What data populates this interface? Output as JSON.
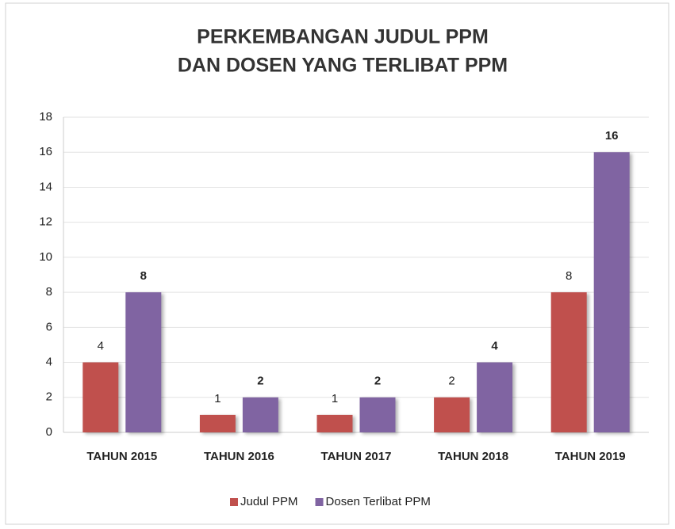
{
  "chart_data": {
    "type": "bar",
    "title": [
      "PERKEMBANGAN JUDUL PPM",
      "DAN DOSEN YANG TERLIBAT PPM"
    ],
    "categories": [
      "TAHUN 2015",
      "TAHUN 2016",
      "TAHUN 2017",
      "TAHUN 2018",
      "TAHUN 2019"
    ],
    "series": [
      {
        "name": "Judul PPM",
        "color": "#c0504d",
        "values": [
          4,
          1,
          1,
          2,
          8
        ]
      },
      {
        "name": "Dosen Terlibat PPM",
        "color": "#8064a2",
        "values": [
          8,
          2,
          2,
          4,
          16
        ]
      }
    ],
    "ylim": [
      0,
      18
    ],
    "yticks": [
      0,
      2,
      4,
      6,
      8,
      10,
      12,
      14,
      16,
      18
    ],
    "grid": true,
    "legend": "bottom"
  }
}
